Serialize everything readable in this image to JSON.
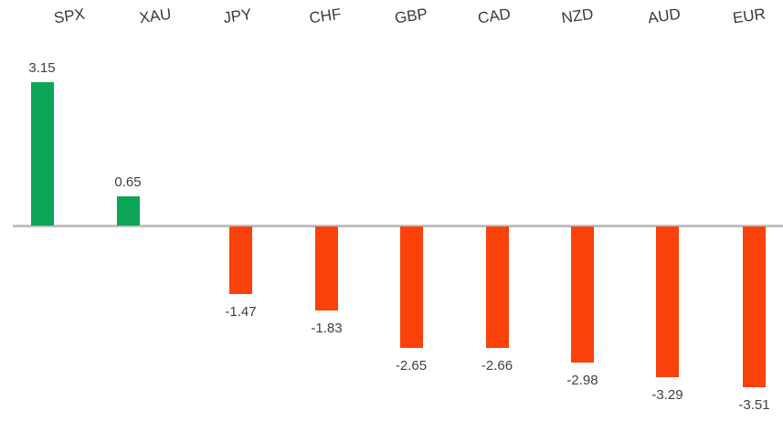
{
  "chart_data": {
    "type": "bar",
    "categories": [
      "SPX",
      "XAU",
      "JPY",
      "CHF",
      "GBP",
      "CAD",
      "NZD",
      "AUD",
      "EUR"
    ],
    "values": [
      3.15,
      0.65,
      -1.47,
      -1.83,
      -2.65,
      -2.66,
      -2.98,
      -3.29,
      -3.51
    ],
    "data_labels": [
      "3.15",
      "0.65",
      "-1.47",
      "-1.83",
      "-2.65",
      "-2.66",
      "-2.98",
      "-3.29",
      "-3.51"
    ],
    "title": "",
    "xlabel": "",
    "ylabel": "",
    "ylim": [
      -4,
      3.5
    ],
    "grid": false,
    "legend": false,
    "positive_color": "#0ca558",
    "negative_color": "#fa420a",
    "baseline_color": "#c0c0c0",
    "label_color": "#404040"
  }
}
